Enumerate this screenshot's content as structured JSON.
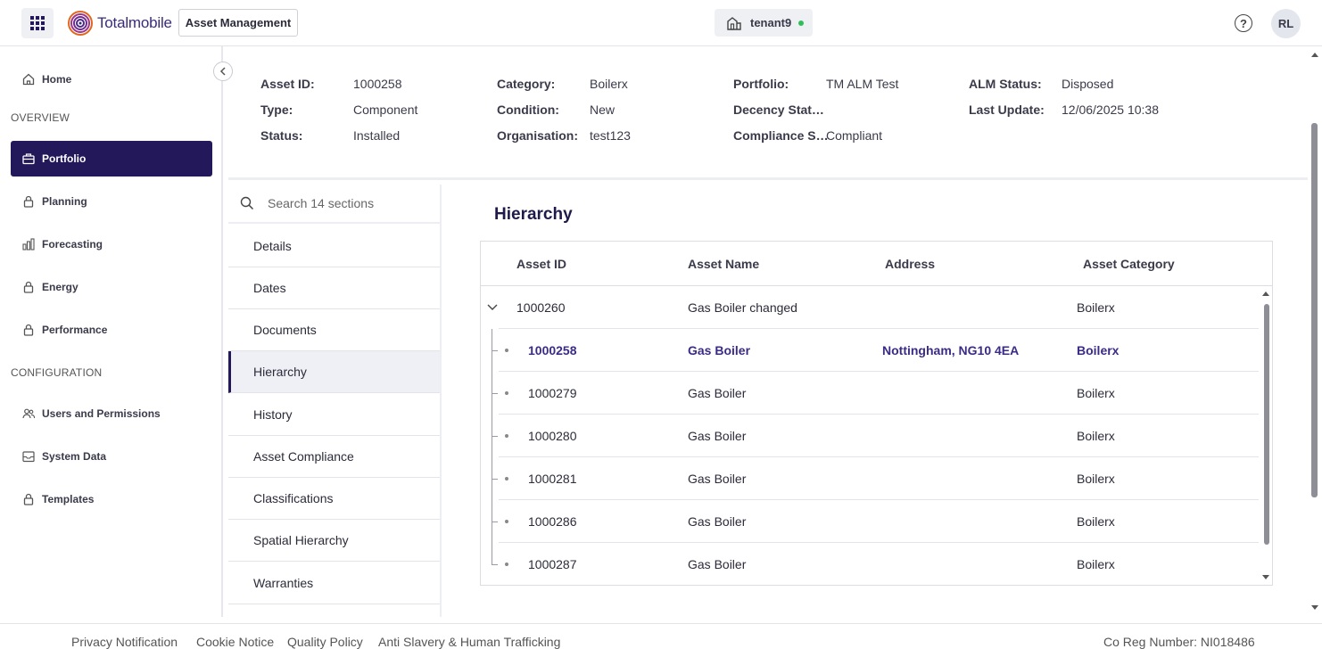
{
  "header": {
    "brand_name": "Totalmobile",
    "app_button_label": "Asset Management",
    "tenant": "tenant9",
    "tenant_status_color": "#2fbf5a",
    "user_initials": "RL",
    "help_symbol": "?"
  },
  "sidebar": {
    "items": [
      {
        "label": "Home",
        "icon": "home-icon"
      },
      {
        "label": "Portfolio",
        "icon": "briefcase-icon",
        "active": true
      },
      {
        "label": "Planning",
        "icon": "lock-icon"
      },
      {
        "label": "Forecasting",
        "icon": "bar-chart-icon"
      },
      {
        "label": "Energy",
        "icon": "lock-icon"
      },
      {
        "label": "Performance",
        "icon": "lock-icon"
      },
      {
        "label": "Users and Permissions",
        "icon": "users-icon"
      },
      {
        "label": "System Data",
        "icon": "inbox-icon"
      },
      {
        "label": "Templates",
        "icon": "lock-icon"
      }
    ],
    "sections": [
      "OVERVIEW",
      "CONFIGURATION"
    ],
    "active_color": "#22185a"
  },
  "asset": {
    "fields": [
      {
        "label": "Asset ID:",
        "value": "1000258"
      },
      {
        "label": "Type:",
        "value": "Component"
      },
      {
        "label": "Status:",
        "value": "Installed"
      },
      {
        "label": "Category:",
        "value": "Boilerx"
      },
      {
        "label": "Condition:",
        "value": "New"
      },
      {
        "label": "Organisation:",
        "value": "test123"
      },
      {
        "label": "Portfolio:",
        "value": "TM ALM Test"
      },
      {
        "label": "Decency Stat…",
        "value": ""
      },
      {
        "label": "Compliance S…",
        "value": "Compliant"
      },
      {
        "label": "ALM Status:",
        "value": "Disposed"
      },
      {
        "label": "Last Update:",
        "value": "12/06/2025 10:38"
      }
    ]
  },
  "sections_panel": {
    "search_placeholder": "Search 14 sections",
    "items": [
      "Details",
      "Dates",
      "Documents",
      "Hierarchy",
      "History",
      "Asset Compliance",
      "Classifications",
      "Spatial Hierarchy",
      "Warranties"
    ],
    "active": "Hierarchy"
  },
  "hierarchy": {
    "title": "Hierarchy",
    "columns": [
      "Asset ID",
      "Asset Name",
      "Address",
      "Asset Category"
    ],
    "parent": {
      "id": "1000260",
      "name": "Gas Boiler changed",
      "address": "",
      "category": "Boilerx"
    },
    "children": [
      {
        "id": "1000258",
        "name": "Gas Boiler",
        "address": "Nottingham, NG10 4EA",
        "category": "Boilerx",
        "selected": true
      },
      {
        "id": "1000279",
        "name": "Gas Boiler",
        "address": "",
        "category": "Boilerx"
      },
      {
        "id": "1000280",
        "name": "Gas Boiler",
        "address": "",
        "category": "Boilerx"
      },
      {
        "id": "1000281",
        "name": "Gas Boiler",
        "address": "",
        "category": "Boilerx"
      },
      {
        "id": "1000286",
        "name": "Gas Boiler",
        "address": "",
        "category": "Boilerx"
      },
      {
        "id": "1000287",
        "name": "Gas Boiler",
        "address": "",
        "category": "Boilerx"
      }
    ],
    "selected_color": "#3a2c86"
  },
  "footer": {
    "links": [
      "Privacy Notification",
      "Cookie Notice",
      "Quality Policy",
      "Anti Slavery & Human Trafficking"
    ],
    "reg_number": "Co Reg Number: NI018486"
  }
}
